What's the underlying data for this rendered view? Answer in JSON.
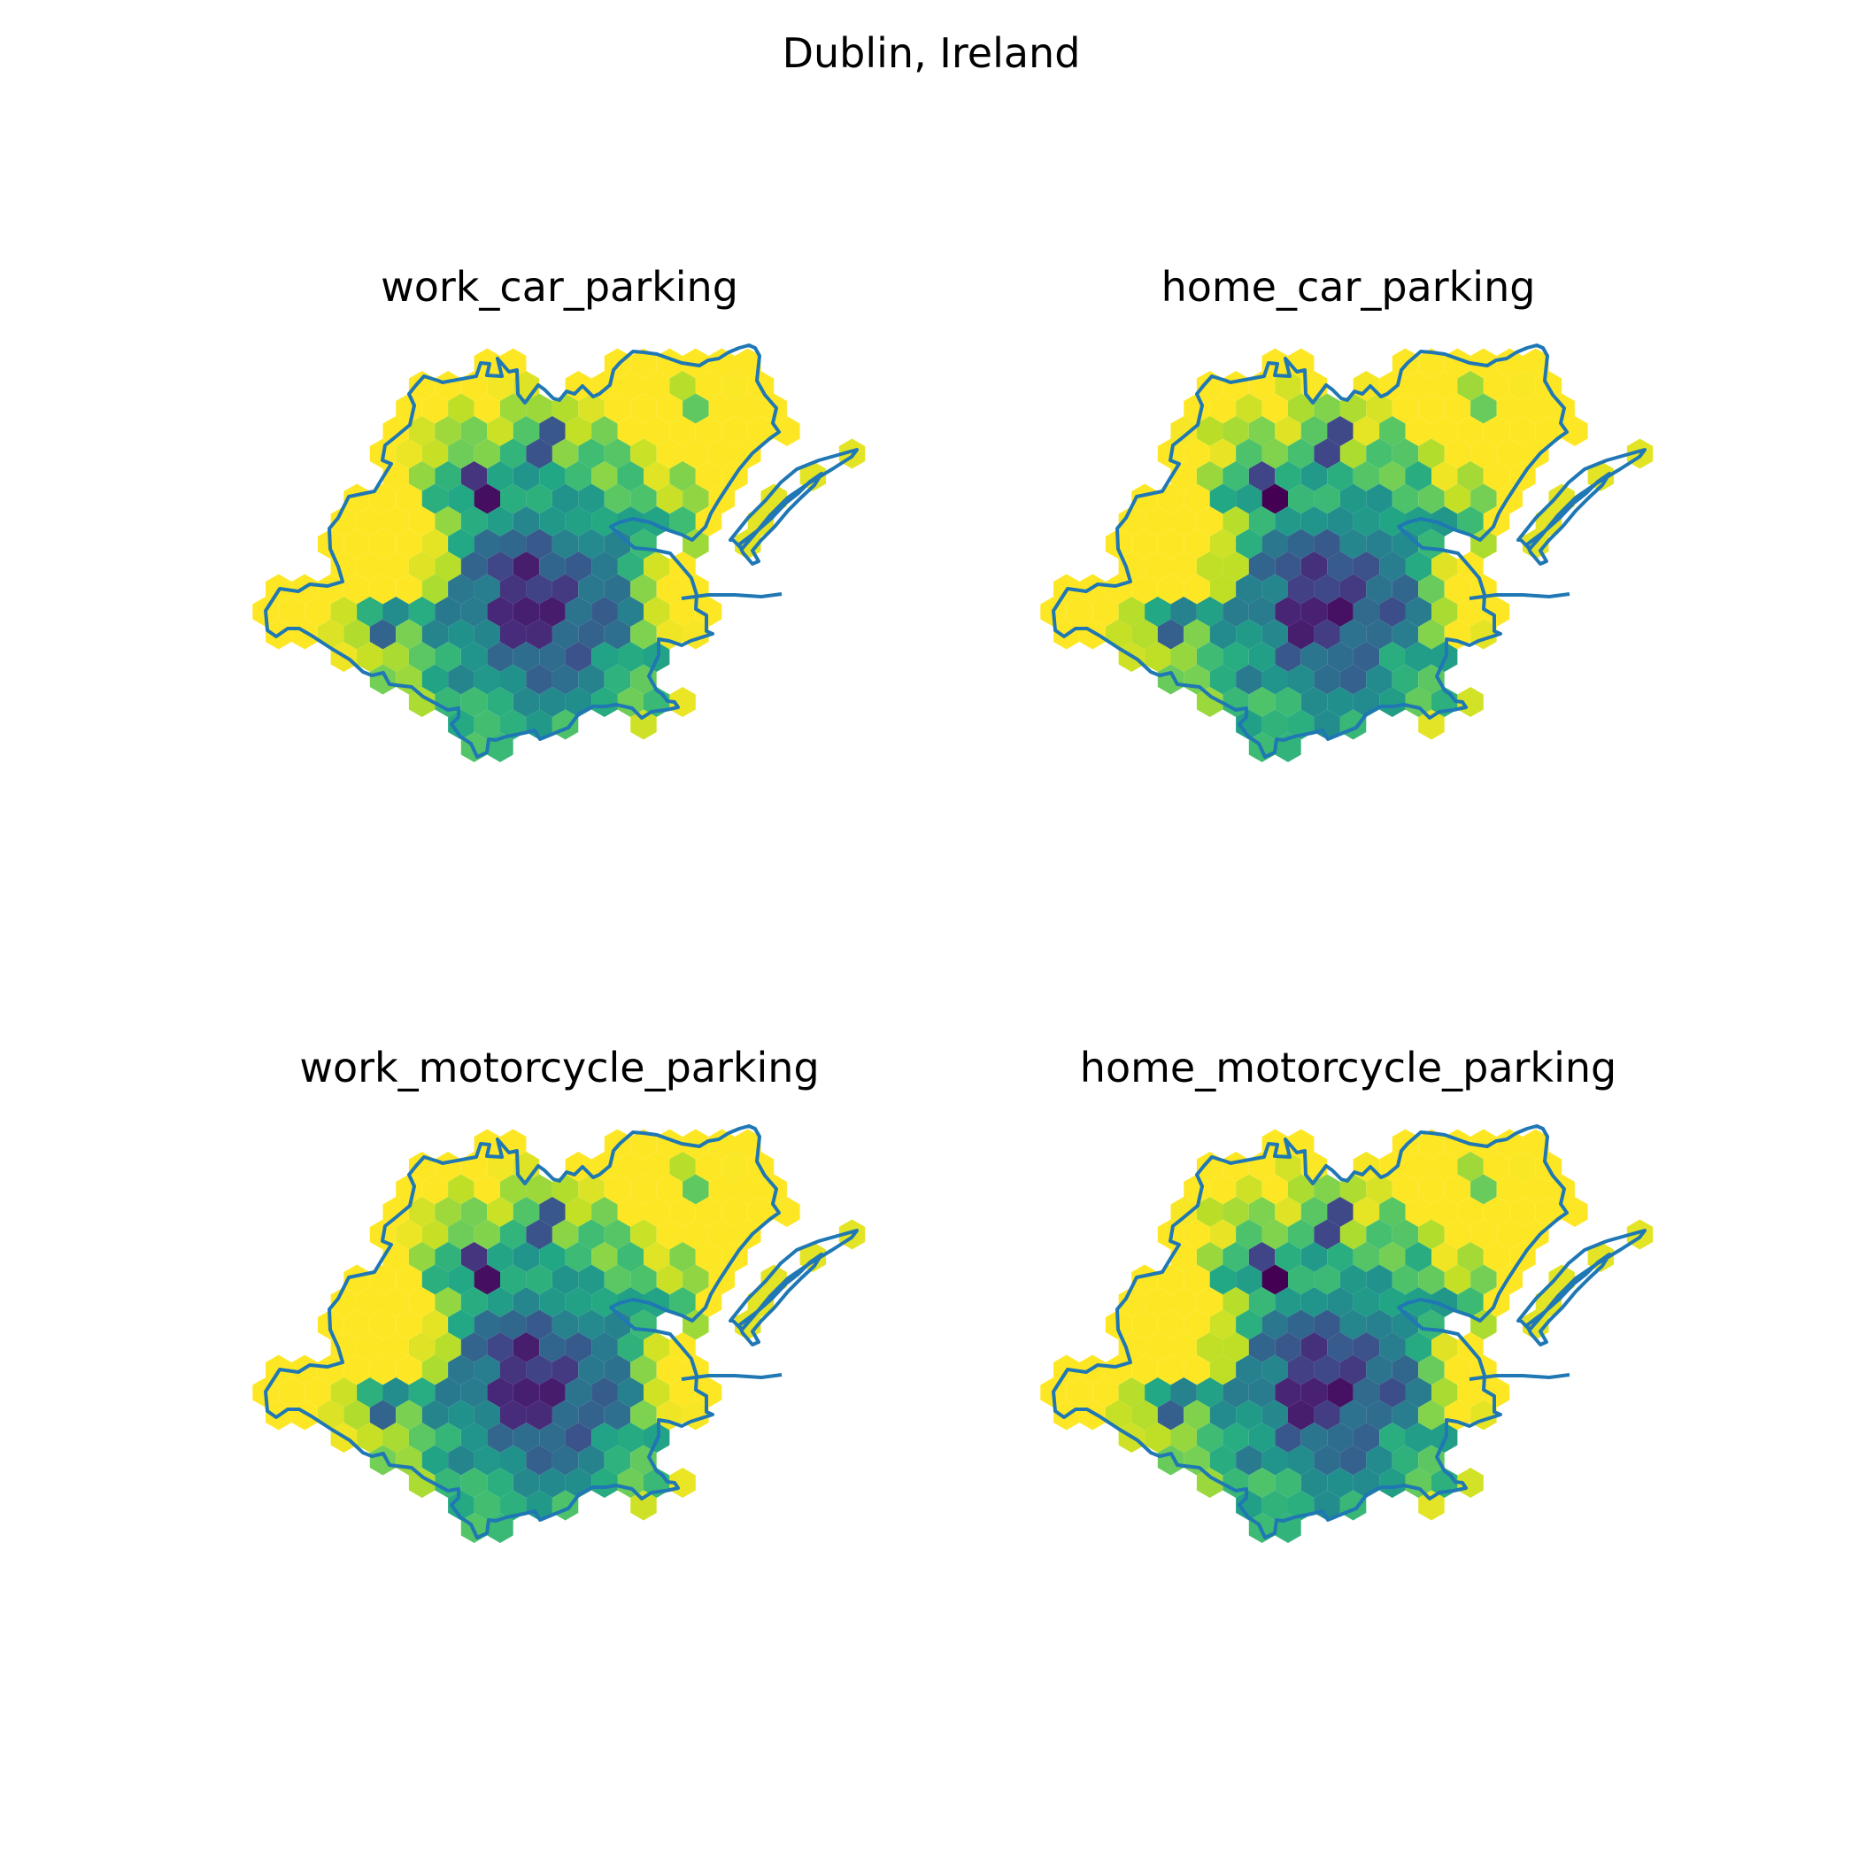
{
  "figure": {
    "suptitle": "Dublin, Ireland"
  },
  "panels": [
    {
      "title": "work_car_parking"
    },
    {
      "title": "home_car_parking"
    },
    {
      "title": "work_motorcycle_parking"
    },
    {
      "title": "home_motorcycle_parking"
    }
  ],
  "style": {
    "boundary_color": "#1f77b4",
    "colormap": "viridis",
    "axes_visible": false
  }
}
